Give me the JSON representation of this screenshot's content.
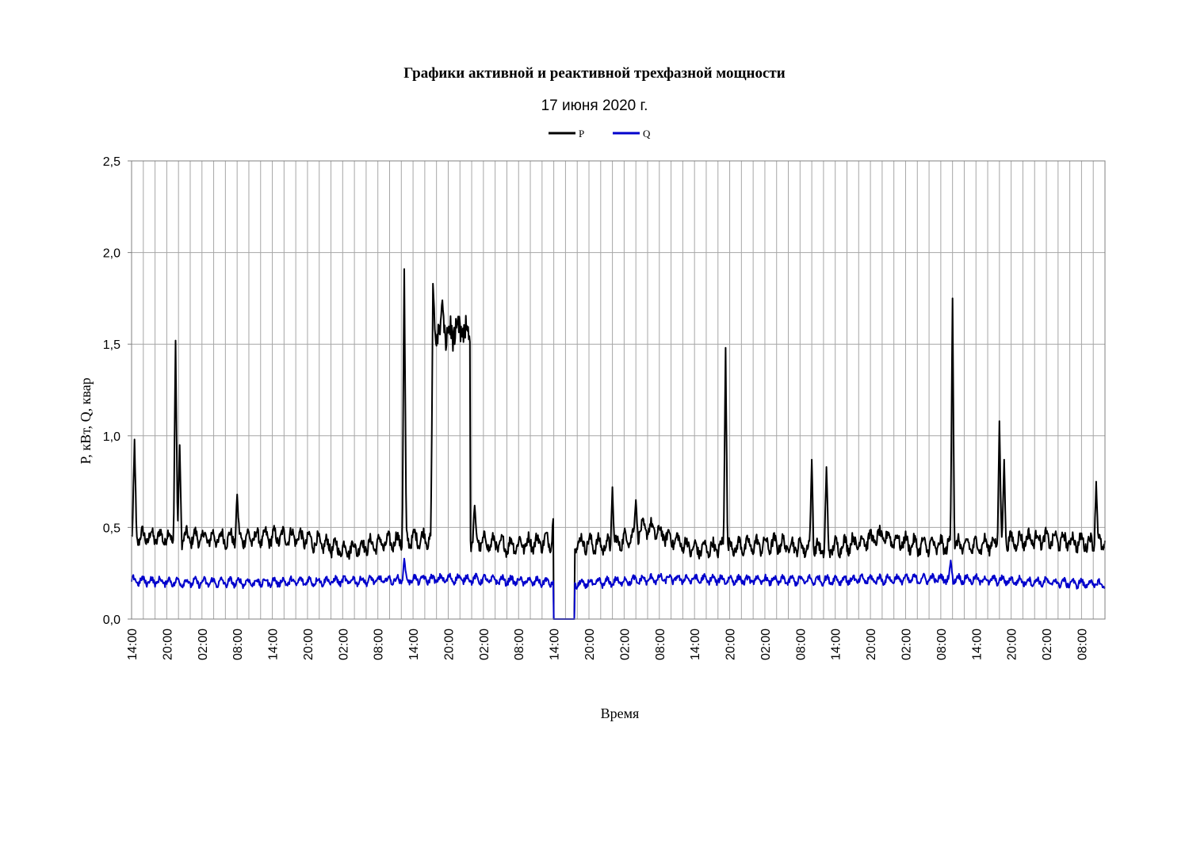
{
  "chart_data": {
    "type": "line",
    "title": "Графики активной и реактивной трехфазной мощности",
    "subtitle": "17 июня 2020 г.",
    "xlabel": "Время",
    "ylabel": "P, кВт, Q, квар",
    "ylim": [
      0,
      2.5
    ],
    "y_ticks": [
      "0,0",
      "0,5",
      "1,0",
      "1,5",
      "2,0",
      "2,5"
    ],
    "x_ticks": [
      "14:00",
      "20:00",
      "02:00",
      "08:00",
      "14:00",
      "20:00",
      "02:00",
      "08:00",
      "14:00",
      "20:00",
      "02:00",
      "08:00",
      "14:00",
      "20:00",
      "02:00",
      "08:00",
      "14:00",
      "20:00",
      "02:00",
      "08:00",
      "14:00",
      "20:00",
      "02:00",
      "08:00",
      "14:00",
      "20:00",
      "02:00",
      "08:00"
    ],
    "x_range_hours": [
      0,
      166
    ],
    "grid": "vertical-every-2h, horizontal-at-ticks",
    "legend_position": "top-center",
    "series": [
      {
        "name": "P",
        "color": "#000000",
        "baseline": [
          [
            0,
            0.45
          ],
          [
            16,
            0.44
          ],
          [
            28,
            0.45
          ],
          [
            36,
            0.38
          ],
          [
            48,
            0.44
          ],
          [
            56,
            0.44
          ],
          [
            64,
            0.4
          ],
          [
            72,
            0.43
          ],
          [
            82,
            0.4
          ],
          [
            88,
            0.5
          ],
          [
            96,
            0.38
          ],
          [
            110,
            0.41
          ],
          [
            118,
            0.38
          ],
          [
            128,
            0.45
          ],
          [
            134,
            0.4
          ],
          [
            144,
            0.4
          ],
          [
            154,
            0.44
          ],
          [
            166,
            0.41
          ]
        ],
        "plateaus": [
          [
            51.4,
            57.8,
            1.56
          ]
        ],
        "dropouts": [
          [
            72,
            75.5
          ]
        ],
        "peaks": [
          [
            0.5,
            0.98
          ],
          [
            7.5,
            1.52
          ],
          [
            8.2,
            0.95
          ],
          [
            18,
            0.68
          ],
          [
            46.5,
            1.91
          ],
          [
            51.4,
            1.83
          ],
          [
            53,
            1.74
          ],
          [
            58.5,
            0.62
          ],
          [
            72,
            0.6
          ],
          [
            82,
            0.72
          ],
          [
            86,
            0.65
          ],
          [
            101.3,
            1.48
          ],
          [
            116,
            0.87
          ],
          [
            118.5,
            0.83
          ],
          [
            140,
            1.75
          ],
          [
            148,
            1.08
          ],
          [
            148.8,
            0.87
          ],
          [
            164.5,
            0.75
          ]
        ],
        "ripple": 0.06
      },
      {
        "name": "Q",
        "color": "#0000cc",
        "baseline": [
          [
            0,
            0.21
          ],
          [
            10,
            0.2
          ],
          [
            20,
            0.2
          ],
          [
            40,
            0.21
          ],
          [
            56,
            0.22
          ],
          [
            72,
            0.2
          ],
          [
            76,
            0.19
          ],
          [
            90,
            0.22
          ],
          [
            110,
            0.21
          ],
          [
            140,
            0.22
          ],
          [
            166,
            0.19
          ]
        ],
        "dropouts": [
          [
            72,
            75.5
          ]
        ],
        "peaks": [
          [
            46.5,
            0.33
          ],
          [
            139.7,
            0.32
          ]
        ],
        "ripple": 0.03
      }
    ]
  }
}
